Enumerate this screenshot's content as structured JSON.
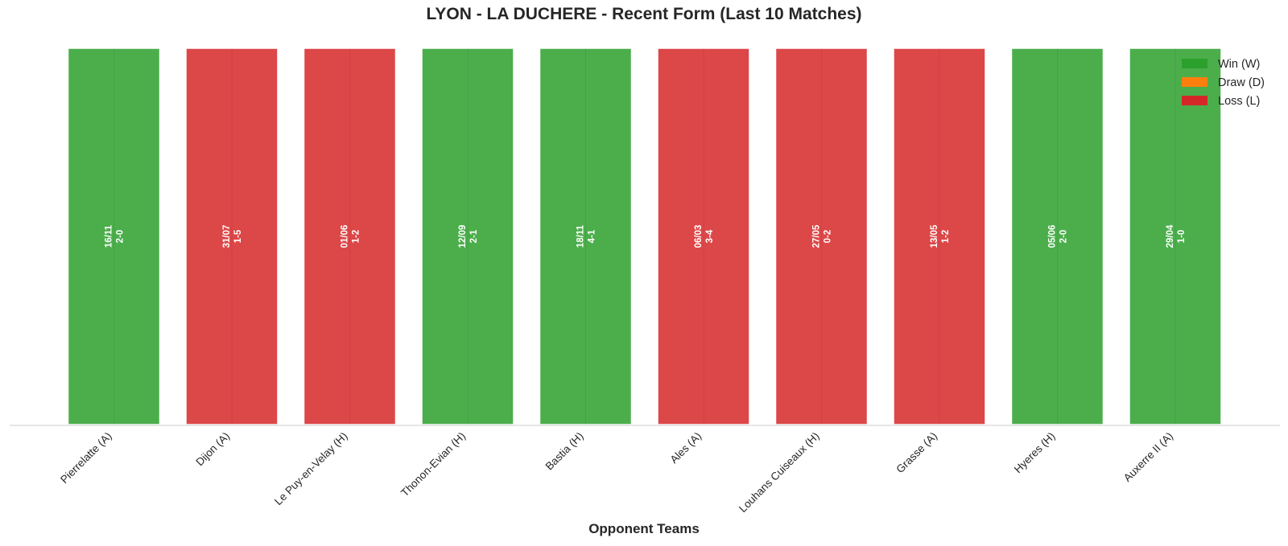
{
  "chart_data": {
    "type": "bar",
    "title": "LYON - LA DUCHERE - Recent Form (Last 10 Matches)",
    "xlabel": "Opponent Teams",
    "ylabel": "",
    "grid": false,
    "legend_placement": "top-right",
    "categories": [
      "Pierrelatte (A)",
      "Dijon (A)",
      "Le Puy-en-Velay (H)",
      "Thonon-Evian (H)",
      "Bastia (H)",
      "Ales (A)",
      "Louhans Cuiseaux (H)",
      "Grasse (A)",
      "Hyeres (H)",
      "Auxerre II (A)"
    ],
    "values": [
      1,
      1,
      1,
      1,
      1,
      1,
      1,
      1,
      1,
      1
    ],
    "results": [
      "W",
      "L",
      "L",
      "W",
      "W",
      "L",
      "L",
      "L",
      "W",
      "W"
    ],
    "dates": [
      "16/11",
      "31/07",
      "01/06",
      "12/09",
      "18/11",
      "06/03",
      "27/05",
      "13/05",
      "05/06",
      "29/04"
    ],
    "scores": [
      "2-0",
      "1-5",
      "1-2",
      "2-1",
      "4-1",
      "3-4",
      "0-2",
      "1-2",
      "2-0",
      "1-0"
    ],
    "legend": [
      {
        "key": "W",
        "label": "Win (W)",
        "color": "#2ca02c"
      },
      {
        "key": "D",
        "label": "Draw (D)",
        "color": "#ff7f0e"
      },
      {
        "key": "L",
        "label": "Loss (L)",
        "color": "#d62728"
      }
    ]
  }
}
